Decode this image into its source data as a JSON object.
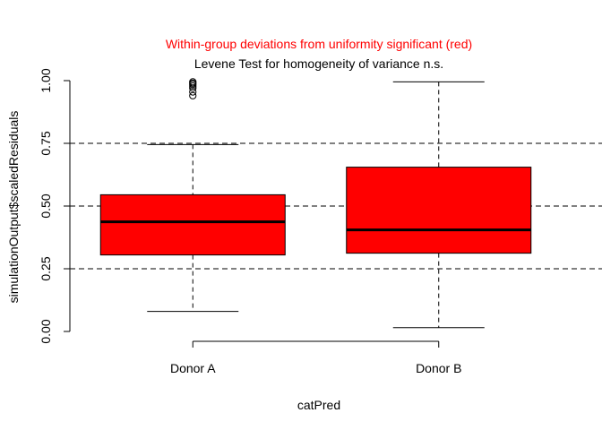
{
  "chart_data": {
    "type": "box",
    "title": "Within-group deviations from uniformity significant (red)",
    "subtitle": "Levene Test for homogeneity of variance n.s.",
    "xlabel": "catPred",
    "ylabel": "simulationOutput$scaledResiduals",
    "ylim": [
      0,
      1
    ],
    "yticks": [
      "0.00",
      "0.25",
      "0.50",
      "0.75",
      "1.00"
    ],
    "reference_lines": [
      0.25,
      0.5,
      0.75
    ],
    "grid": false,
    "colors": {
      "box_fill": "#ff0000",
      "title": "#ff0000",
      "subtitle": "#000000",
      "line": "#000000"
    },
    "groups": [
      {
        "label": "Donor A",
        "min": 0.08,
        "q1": 0.305,
        "median": 0.437,
        "q3": 0.545,
        "max": 0.745,
        "outliers": [
          0.94,
          0.955,
          0.97,
          0.978,
          0.985,
          0.99,
          0.995
        ]
      },
      {
        "label": "Donor B",
        "min": 0.015,
        "q1": 0.312,
        "median": 0.405,
        "q3": 0.655,
        "max": 0.995,
        "outliers": []
      }
    ]
  }
}
